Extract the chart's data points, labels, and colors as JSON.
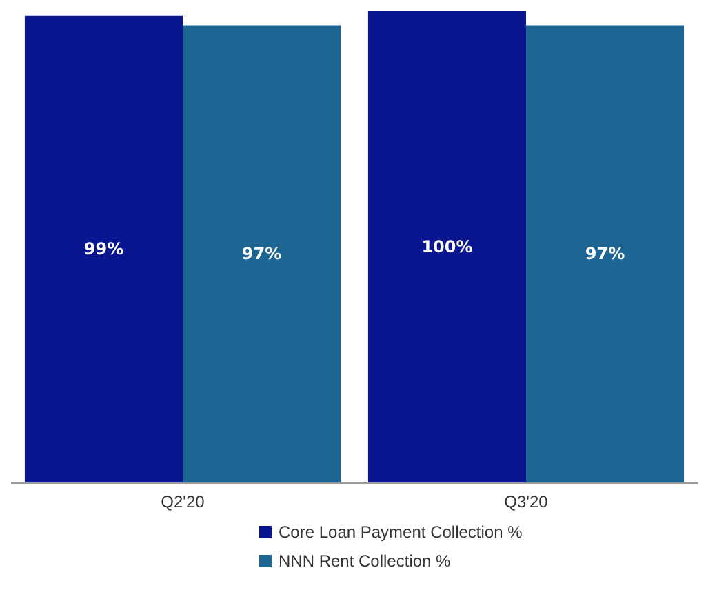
{
  "chart_data": {
    "type": "bar",
    "categories": [
      "Q2'20",
      "Q3'20"
    ],
    "series": [
      {
        "name": "Core Loan Payment Collection %",
        "color": "#0a1690",
        "values": [
          99,
          100
        ],
        "value_labels": [
          "99%",
          "100%"
        ]
      },
      {
        "name": "NNN Rent Collection %",
        "color": "#1d6693",
        "values": [
          97,
          97
        ],
        "value_labels": [
          "97%",
          "97%"
        ]
      }
    ],
    "grid": false,
    "legend": "bottom"
  }
}
